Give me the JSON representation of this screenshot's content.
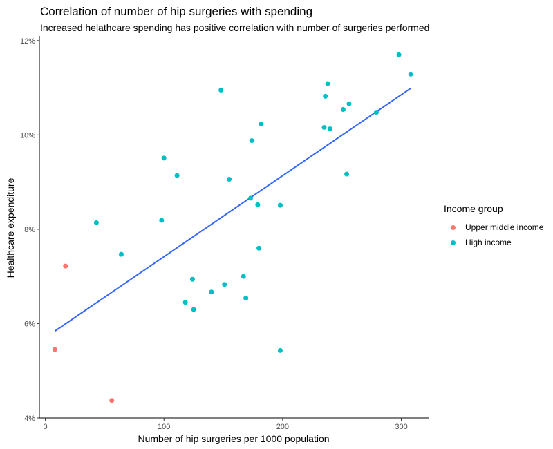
{
  "chart_data": {
    "type": "scatter",
    "title": "Correlation of number of hip surgeries with spending",
    "subtitle": "Increased helathcare spending has positive correlation with number of surgeries performed",
    "xlabel": "Number of hip surgeries per 1000 population",
    "ylabel": "Healthcare expenditure",
    "xlim": [
      -5,
      323
    ],
    "ylim": [
      4,
      12.1
    ],
    "x_ticks": [
      0,
      100,
      200,
      300
    ],
    "x_tick_labels": [
      "0",
      "100",
      "200",
      "300"
    ],
    "y_ticks": [
      4,
      6,
      8,
      10,
      12
    ],
    "y_tick_labels": [
      "4%",
      "6%",
      "8%",
      "10%",
      "12%"
    ],
    "grid": false,
    "legend": {
      "title": "Income group",
      "position": "right"
    },
    "series": [
      {
        "name": "Upper middle income",
        "color": "#F8766D",
        "x": [
          17,
          8,
          56
        ],
        "y": [
          7.22,
          5.45,
          4.37
        ]
      },
      {
        "name": "High income",
        "color": "#00BFC4",
        "x": [
          298,
          308,
          148,
          238,
          236,
          256,
          251,
          235,
          240,
          279,
          182,
          174,
          100,
          111,
          155,
          254,
          173,
          179,
          198,
          43,
          98,
          64,
          180,
          167,
          124,
          151,
          140,
          118,
          125,
          169,
          198
        ],
        "y": [
          11.7,
          11.29,
          10.95,
          11.09,
          10.82,
          10.66,
          10.54,
          10.16,
          10.13,
          10.48,
          10.23,
          9.88,
          9.51,
          9.14,
          9.06,
          9.17,
          8.66,
          8.52,
          8.51,
          8.14,
          8.19,
          7.47,
          7.6,
          7.0,
          6.94,
          6.83,
          6.67,
          6.45,
          6.3,
          6.54,
          5.43
        ]
      }
    ],
    "trend_line": {
      "x": [
        8,
        308
      ],
      "y": [
        5.84,
        10.99
      ],
      "color": "#3366FF"
    }
  }
}
